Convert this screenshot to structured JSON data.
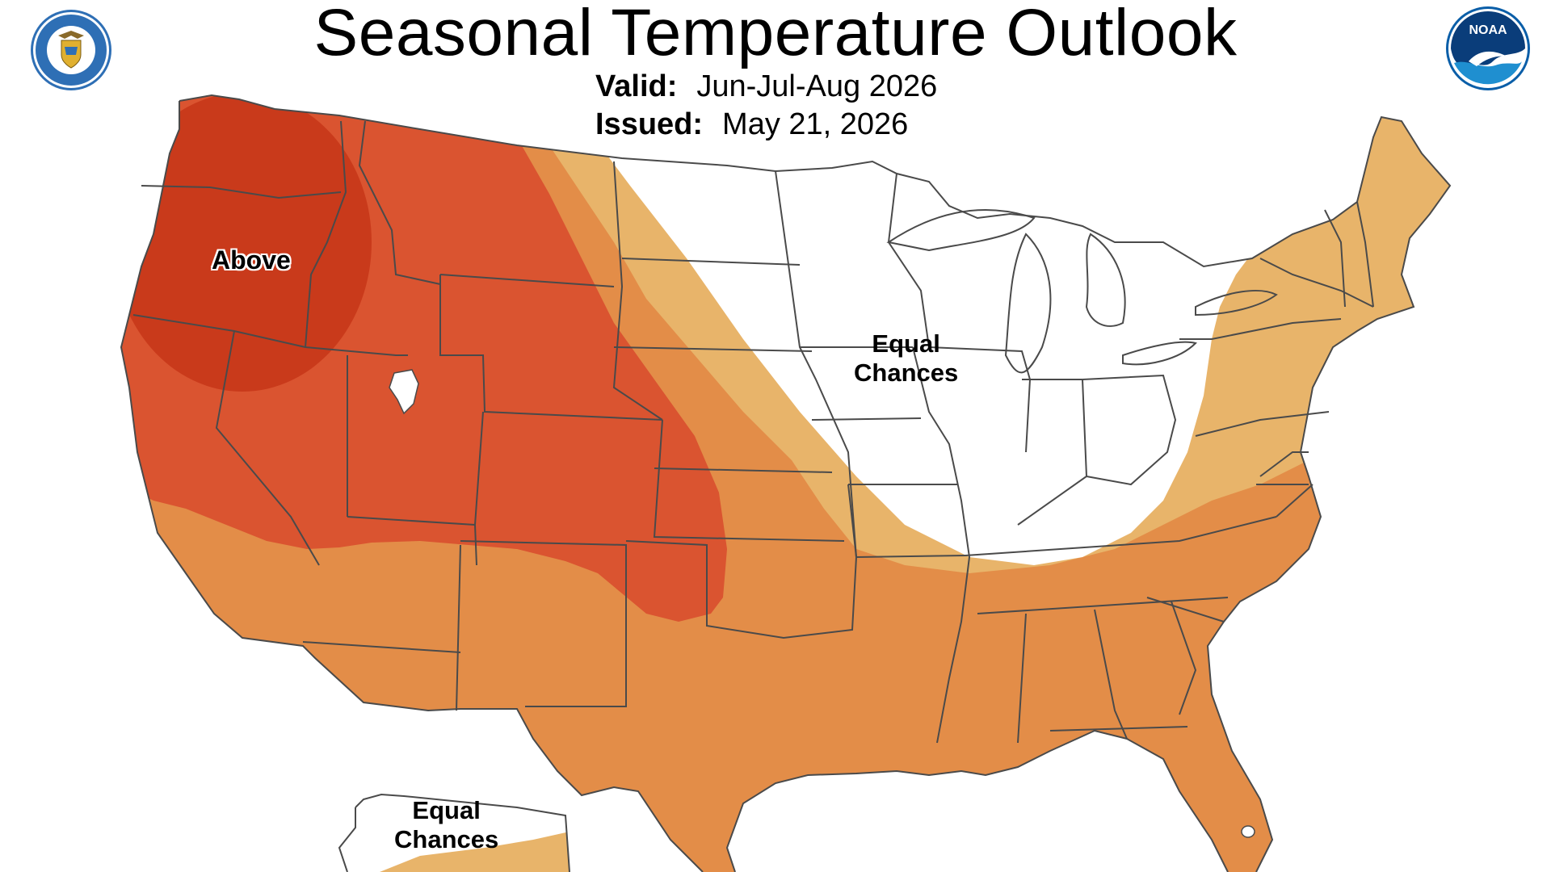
{
  "header": {
    "title": "Seasonal Temperature Outlook",
    "valid_label": "Valid:",
    "valid_value": "Jun-Jul-Aug 2026",
    "issued_label": "Issued:",
    "issued_value": "May 21, 2026"
  },
  "logos": {
    "left": {
      "icon": "doc-seal-icon",
      "text": "DEPARTMENT OF COMMERCE · UNITED STATES OF AMERICA"
    },
    "right": {
      "icon": "noaa-logo-icon",
      "text": "NOAA"
    }
  },
  "map": {
    "region_labels": {
      "above": "Above",
      "equal_main_line1": "Equal",
      "equal_main_line2": "Chances",
      "equal_ak_line1": "Equal",
      "equal_ak_line2": "Chances"
    },
    "categories": [
      {
        "name": "above-50-60",
        "color": "#c93a1b"
      },
      {
        "name": "above-40-50",
        "color": "#da5430"
      },
      {
        "name": "above-33-40",
        "color": "#e38d48"
      },
      {
        "name": "above-leaning",
        "color": "#e8b46a"
      },
      {
        "name": "equal-chances",
        "color": "#ffffff"
      }
    ],
    "state_border_color": "#4a4a4a"
  }
}
